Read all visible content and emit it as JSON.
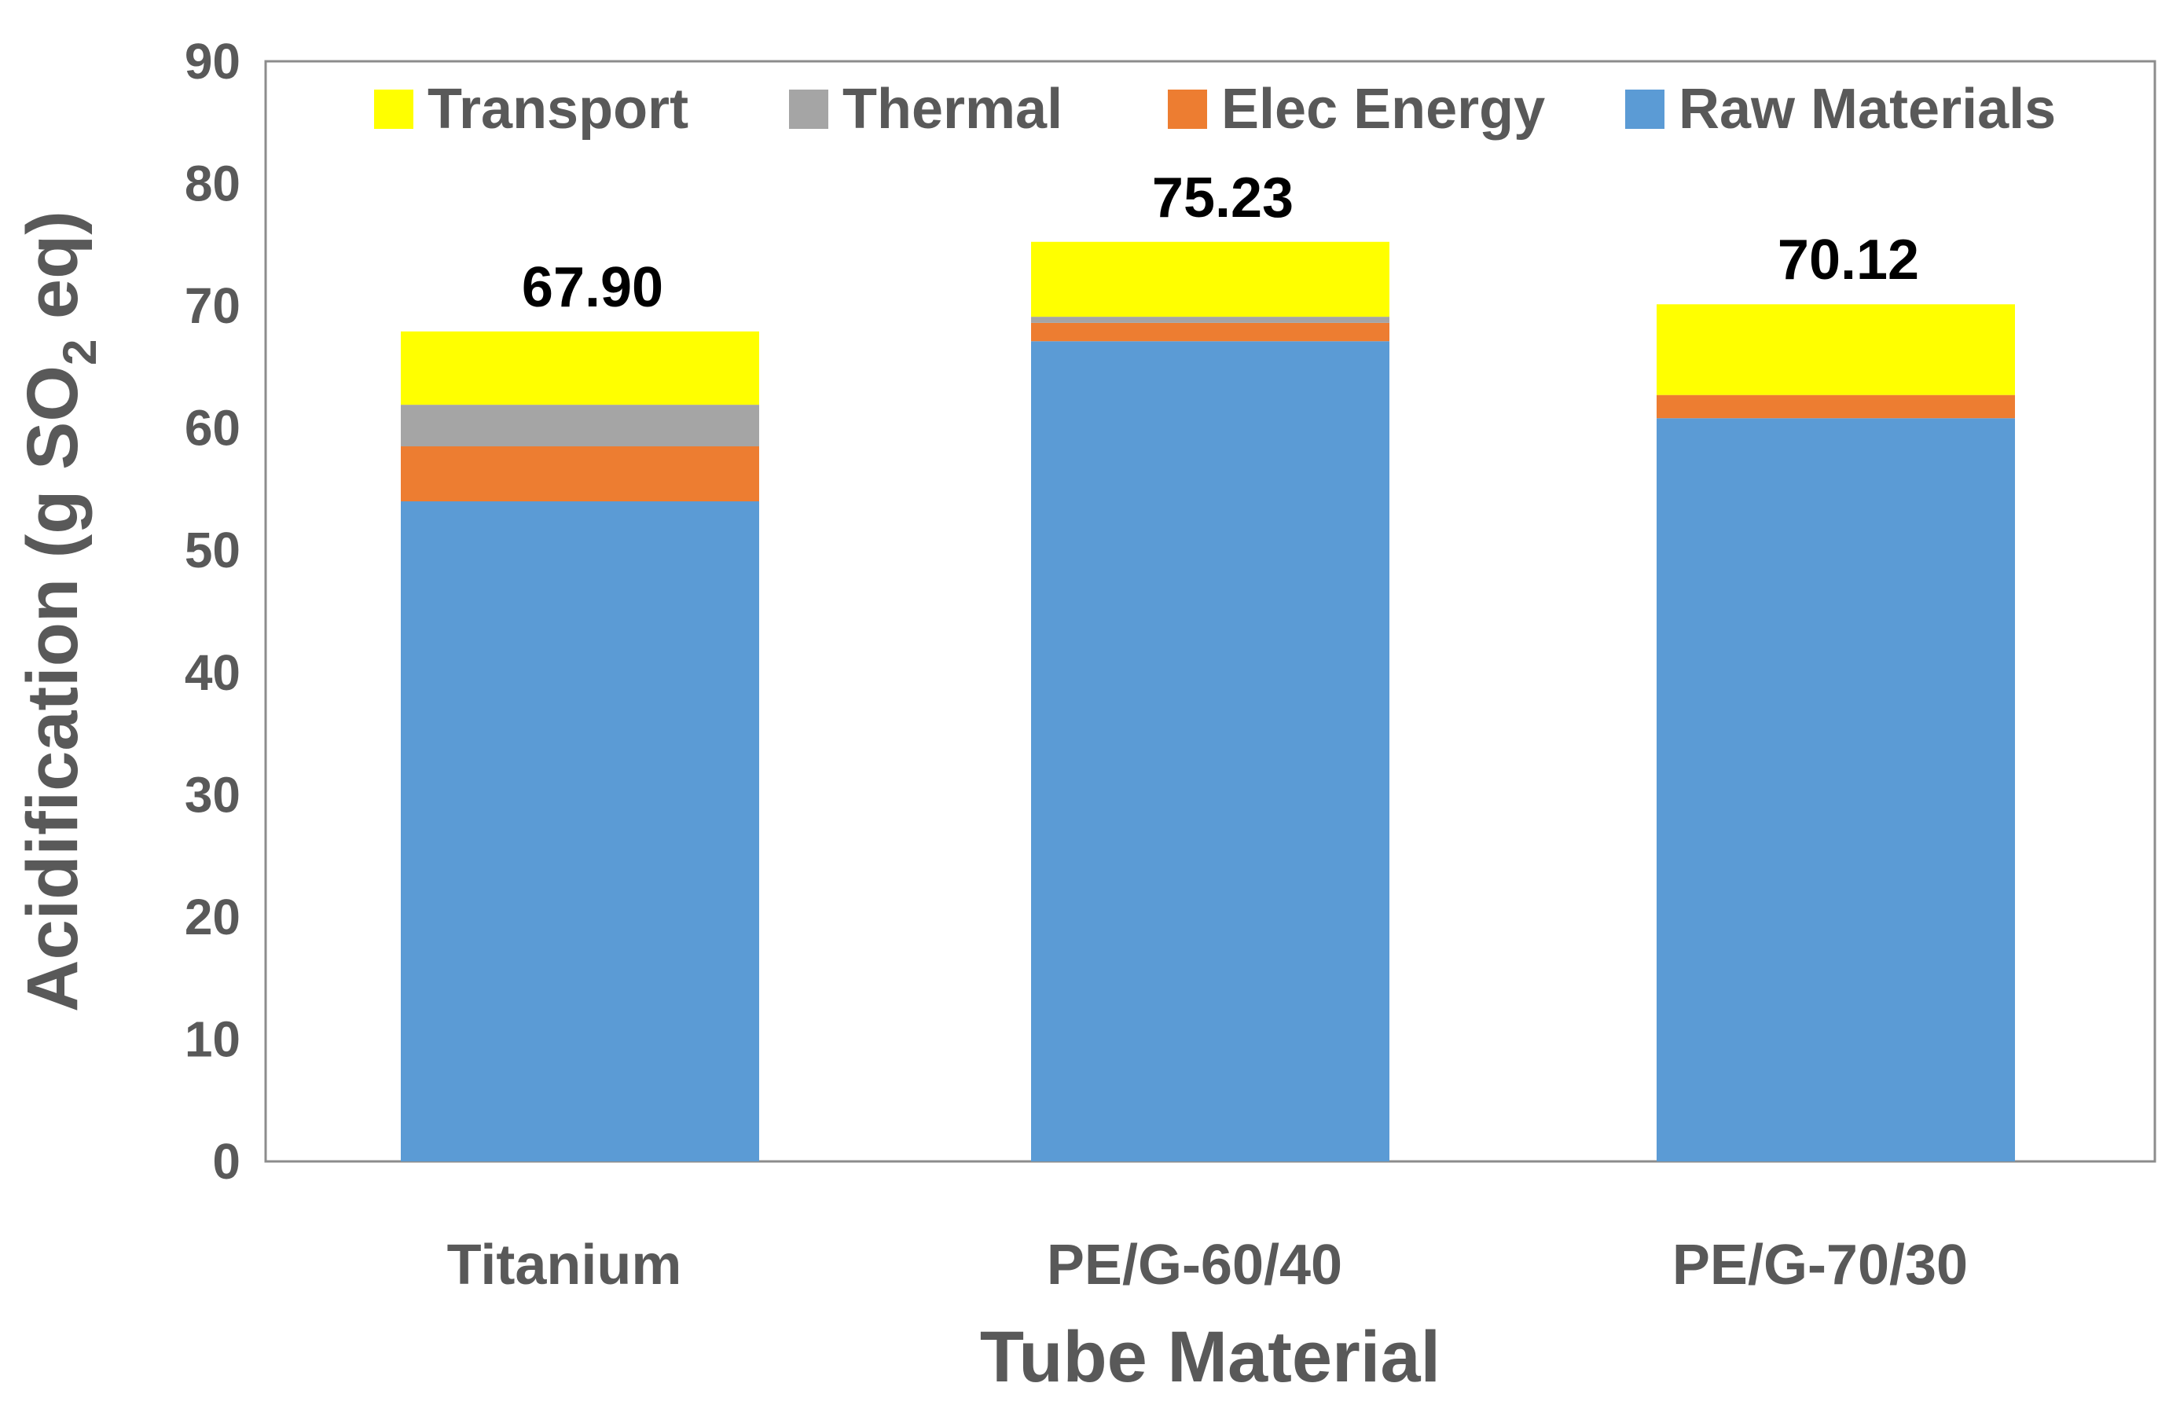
{
  "chart_data": {
    "type": "bar",
    "stacked": true,
    "title": "",
    "xlabel": "Tube Material",
    "ylabel": {
      "prefix": "Acidification (g SO",
      "subscript": "2",
      "suffix": " eq)"
    },
    "ylim": [
      0,
      90
    ],
    "yticks": [
      0,
      10,
      20,
      30,
      40,
      50,
      60,
      70,
      80,
      90
    ],
    "categories": [
      "Titanium",
      "PE/G-60/40",
      "PE/G-70/30"
    ],
    "series": [
      {
        "name": "Raw Materials",
        "color": "#5B9BD5",
        "values": [
          54.0,
          67.1,
          60.8
        ]
      },
      {
        "name": "Elec Energy",
        "color": "#ED7D31",
        "values": [
          4.5,
          1.5,
          1.9
        ]
      },
      {
        "name": "Thermal",
        "color": "#A5A5A5",
        "values": [
          3.4,
          0.5,
          0.0
        ]
      },
      {
        "name": "Transport",
        "color": "#FFFF00",
        "values": [
          6.0,
          6.13,
          7.42
        ]
      }
    ],
    "totals": [
      "67.90",
      "75.23",
      "70.12"
    ],
    "legend": {
      "position": "top-inside",
      "order": [
        "Transport",
        "Thermal",
        "Elec Energy",
        "Raw Materials"
      ]
    },
    "grid": false
  }
}
